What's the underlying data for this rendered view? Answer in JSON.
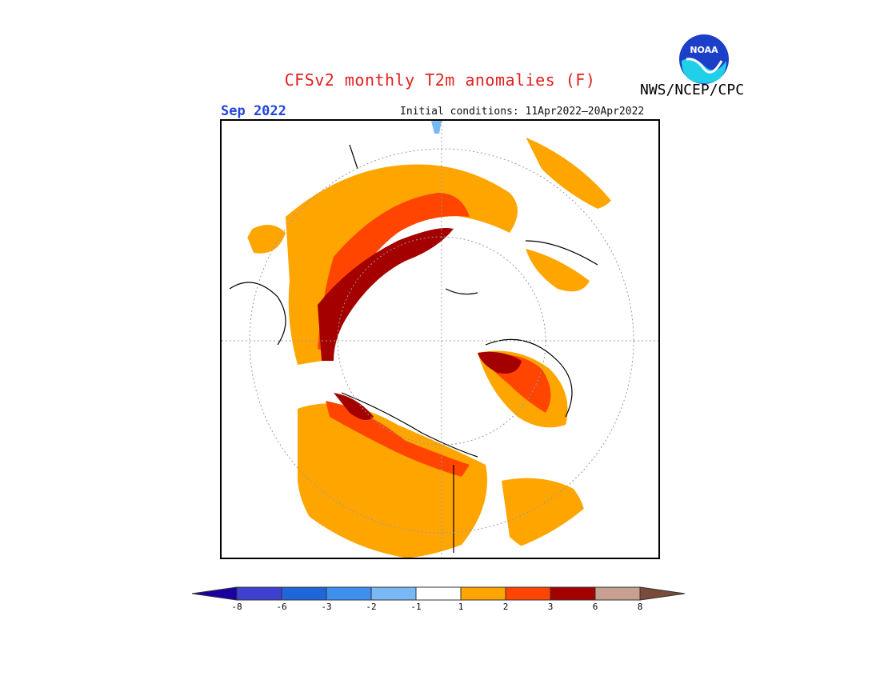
{
  "header": {
    "title": "CFSv2 monthly T2m anomalies (F)",
    "agency": "NWS/NCEP/CPC",
    "logo_text": "NOAA",
    "month": "Sep 2022",
    "initial_conditions": "Initial conditions: 11Apr2022–20Apr2022"
  },
  "colors": {
    "title": "#e0201e",
    "month": "#2244dd",
    "anom_1_2": "#ffa500",
    "anom_2_3": "#ff4500",
    "anom_3_6": "#a50000",
    "anom_6_8": "#c8a090",
    "cold_neg1": "#79b7f5"
  },
  "legend": {
    "type": "colorbar",
    "bins": [
      {
        "color": "#1a00a0",
        "label": "-8"
      },
      {
        "color": "#4040d0",
        "label": "-6"
      },
      {
        "color": "#1f66d8",
        "label": "-3"
      },
      {
        "color": "#3e90ee",
        "label": "-2"
      },
      {
        "color": "#79b7f5",
        "label": "-1"
      },
      {
        "color": "#ffffff",
        "label": "1"
      },
      {
        "color": "#ffa500",
        "label": "2"
      },
      {
        "color": "#ff4500",
        "label": "3"
      },
      {
        "color": "#a50000",
        "label": "6"
      },
      {
        "color": "#c8a090",
        "label": "8"
      },
      {
        "color": "#7a4a3a",
        "label": ""
      }
    ],
    "tick_labels": [
      "-8",
      "-6",
      "-3",
      "-2",
      "-1",
      "1",
      "2",
      "3",
      "6",
      "8"
    ]
  }
}
